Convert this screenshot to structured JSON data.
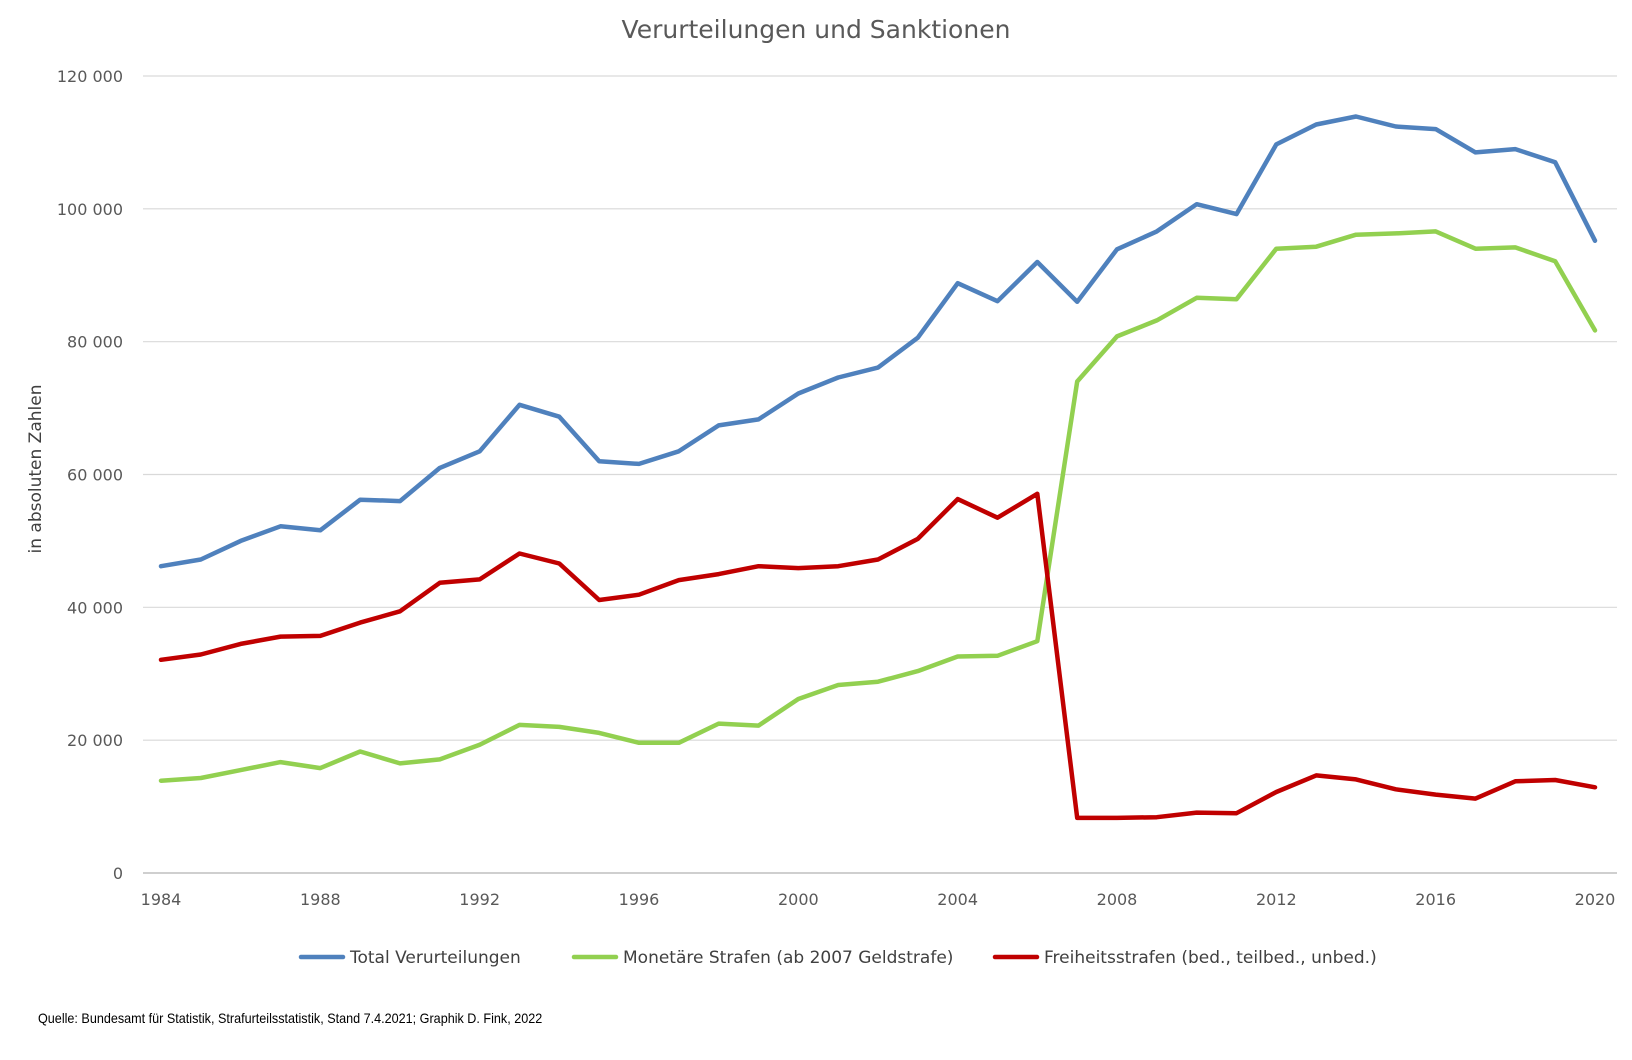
{
  "chart_data": {
    "type": "line",
    "title": "Verurteilungen und Sanktionen",
    "ylabel": "in absoluten Zahlen",
    "xlabel": "",
    "x": [
      1984,
      1985,
      1986,
      1987,
      1988,
      1989,
      1990,
      1991,
      1992,
      1993,
      1994,
      1995,
      1996,
      1997,
      1998,
      1999,
      2000,
      2001,
      2002,
      2003,
      2004,
      2005,
      2006,
      2007,
      2008,
      2009,
      2010,
      2011,
      2012,
      2013,
      2014,
      2015,
      2016,
      2017,
      2018,
      2019,
      2020
    ],
    "xlim": [
      1984,
      2020
    ],
    "x_ticks": [
      1984,
      1988,
      1992,
      1996,
      2000,
      2004,
      2008,
      2012,
      2016,
      2020
    ],
    "x_tick_labels": [
      "1984",
      "1988",
      "1992",
      "1996",
      "2000",
      "2004",
      "2008",
      "2012",
      "2016",
      "2020"
    ],
    "ylim": [
      0,
      120000
    ],
    "y_ticks": [
      0,
      20000,
      40000,
      60000,
      80000,
      100000,
      120000
    ],
    "y_tick_labels": [
      "0",
      "20 000",
      "40 000",
      "60 000",
      "80 000",
      "100 000",
      "120 000"
    ],
    "grid": true,
    "legend_position": "bottom",
    "series": [
      {
        "name": "Total Verurteilungen",
        "color": "#4f81bd",
        "values": [
          46200,
          47200,
          50000,
          52200,
          51600,
          56200,
          56000,
          61000,
          63500,
          70500,
          68700,
          62000,
          61600,
          63500,
          67400,
          68300,
          72200,
          74600,
          76100,
          80600,
          88800,
          86100,
          92000,
          86000,
          93900,
          96600,
          100700,
          99200,
          109700,
          112700,
          113900,
          112400,
          112000,
          108500,
          109000,
          107000,
          95200
        ]
      },
      {
        "name": "Monetäre Strafen (ab 2007 Geldstrafe)",
        "color": "#92d050",
        "values": [
          13900,
          14300,
          15500,
          16700,
          15800,
          18300,
          16500,
          17100,
          19300,
          22300,
          22000,
          21100,
          19600,
          19600,
          22500,
          22200,
          26200,
          28300,
          28800,
          30400,
          32600,
          32700,
          34900,
          74000,
          80800,
          83200,
          86600,
          86400,
          94000,
          94300,
          96100,
          96300,
          96600,
          94000,
          94200,
          92100,
          81700
        ]
      },
      {
        "name": "Freiheitsstrafen (bed., teilbed., unbed.)",
        "color": "#c00000",
        "values": [
          32100,
          32900,
          34500,
          35600,
          35700,
          37700,
          39400,
          43700,
          44200,
          48100,
          46600,
          41100,
          41900,
          44100,
          45000,
          46200,
          45900,
          46200,
          47200,
          50300,
          56300,
          53500,
          57100,
          8300,
          8300,
          8400,
          9100,
          9000,
          12200,
          14700,
          14100,
          12600,
          11800,
          11200,
          13800,
          14000,
          12900
        ]
      }
    ],
    "source": "Quelle: Bundesamt für Statistik, Strafurteilsstatistik, Stand 7.4.2021; Graphik D. Fink, 2022"
  }
}
